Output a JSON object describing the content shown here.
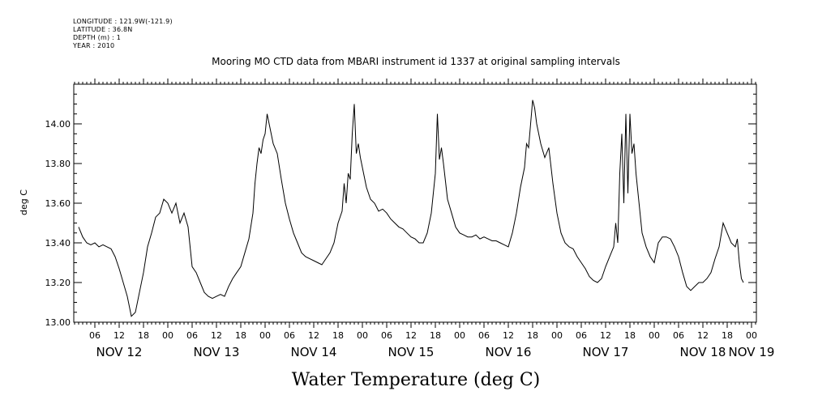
{
  "metadata": {
    "longitude": "LONGITUDE : 121.9W(-121.9)",
    "latitude": "LATITUDE : 36.8N",
    "depth": "DEPTH (m) : 1",
    "year": "YEAR : 2010"
  },
  "chart_data": {
    "type": "line",
    "title": "Mooring MO CTD data from MBARI instrument id 1337 at original sampling intervals",
    "xlabel": "Water Temperature (deg C)",
    "ylabel": "deg C",
    "ylim": [
      13.0,
      14.2
    ],
    "yticks": [
      13.0,
      13.2,
      13.4,
      13.6,
      13.8,
      14.0
    ],
    "ytick_labels": [
      "13.00",
      "13.20",
      "13.40",
      "13.60",
      "13.80",
      "14.00"
    ],
    "xlim_hours": [
      0,
      168
    ],
    "hour_ticks": [
      {
        "h": 4,
        "label": "06"
      },
      {
        "h": 10,
        "label": "12"
      },
      {
        "h": 16,
        "label": "18"
      },
      {
        "h": 22,
        "label": "00"
      },
      {
        "h": 28,
        "label": "06"
      },
      {
        "h": 34,
        "label": "12"
      },
      {
        "h": 40,
        "label": "18"
      },
      {
        "h": 46,
        "label": "00"
      },
      {
        "h": 52,
        "label": "06"
      },
      {
        "h": 58,
        "label": "12"
      },
      {
        "h": 64,
        "label": "18"
      },
      {
        "h": 70,
        "label": "00"
      },
      {
        "h": 76,
        "label": "06"
      },
      {
        "h": 82,
        "label": "12"
      },
      {
        "h": 88,
        "label": "18"
      },
      {
        "h": 94,
        "label": "00"
      },
      {
        "h": 100,
        "label": "06"
      },
      {
        "h": 106,
        "label": "12"
      },
      {
        "h": 112,
        "label": "18"
      },
      {
        "h": 118,
        "label": "00"
      },
      {
        "h": 124,
        "label": "06"
      },
      {
        "h": 130,
        "label": "12"
      },
      {
        "h": 136,
        "label": "18"
      },
      {
        "h": 142,
        "label": "00"
      },
      {
        "h": 148,
        "label": "06"
      },
      {
        "h": 154,
        "label": "12"
      },
      {
        "h": 160,
        "label": "18"
      },
      {
        "h": 166,
        "label": "00"
      }
    ],
    "date_labels": [
      {
        "h": 10,
        "label": "NOV 12"
      },
      {
        "h": 34,
        "label": "NOV 13"
      },
      {
        "h": 58,
        "label": "NOV 14"
      },
      {
        "h": 82,
        "label": "NOV 15"
      },
      {
        "h": 106,
        "label": "NOV 16"
      },
      {
        "h": 130,
        "label": "NOV 17"
      },
      {
        "h": 154,
        "label": "NOV 18"
      },
      {
        "h": 166,
        "label": "NOV 19"
      }
    ],
    "series": [
      {
        "color": "#000000",
        "points": [
          [
            0,
            13.48
          ],
          [
            1,
            13.43
          ],
          [
            2,
            13.4
          ],
          [
            3,
            13.39
          ],
          [
            4,
            13.4
          ],
          [
            5,
            13.38
          ],
          [
            6,
            13.39
          ],
          [
            7,
            13.38
          ],
          [
            8,
            13.37
          ],
          [
            9,
            13.33
          ],
          [
            10,
            13.27
          ],
          [
            11,
            13.2
          ],
          [
            12,
            13.13
          ],
          [
            13,
            13.03
          ],
          [
            14,
            13.05
          ],
          [
            15,
            13.15
          ],
          [
            16,
            13.25
          ],
          [
            17,
            13.38
          ],
          [
            18,
            13.45
          ],
          [
            19,
            13.53
          ],
          [
            20,
            13.55
          ],
          [
            21,
            13.62
          ],
          [
            22,
            13.6
          ],
          [
            23,
            13.55
          ],
          [
            24,
            13.6
          ],
          [
            25,
            13.5
          ],
          [
            26,
            13.55
          ],
          [
            27,
            13.48
          ],
          [
            28,
            13.28
          ],
          [
            29,
            13.25
          ],
          [
            30,
            13.2
          ],
          [
            31,
            13.15
          ],
          [
            32,
            13.13
          ],
          [
            33,
            13.12
          ],
          [
            34,
            13.13
          ],
          [
            35,
            13.14
          ],
          [
            36,
            13.13
          ],
          [
            37,
            13.18
          ],
          [
            38,
            13.22
          ],
          [
            39,
            13.25
          ],
          [
            40,
            13.28
          ],
          [
            41,
            13.35
          ],
          [
            42,
            13.42
          ],
          [
            43,
            13.55
          ],
          [
            43.5,
            13.7
          ],
          [
            44,
            13.8
          ],
          [
            44.5,
            13.88
          ],
          [
            45,
            13.85
          ],
          [
            45.5,
            13.92
          ],
          [
            46,
            13.95
          ],
          [
            46.5,
            14.05
          ],
          [
            47,
            14.0
          ],
          [
            48,
            13.9
          ],
          [
            49,
            13.85
          ],
          [
            50,
            13.72
          ],
          [
            51,
            13.6
          ],
          [
            52,
            13.52
          ],
          [
            53,
            13.45
          ],
          [
            54,
            13.4
          ],
          [
            55,
            13.35
          ],
          [
            56,
            13.33
          ],
          [
            57,
            13.32
          ],
          [
            58,
            13.31
          ],
          [
            59,
            13.3
          ],
          [
            60,
            13.29
          ],
          [
            61,
            13.32
          ],
          [
            62,
            13.35
          ],
          [
            63,
            13.4
          ],
          [
            64,
            13.5
          ],
          [
            65,
            13.56
          ],
          [
            65.5,
            13.7
          ],
          [
            66,
            13.6
          ],
          [
            66.5,
            13.75
          ],
          [
            67,
            13.72
          ],
          [
            67.5,
            13.95
          ],
          [
            68,
            14.1
          ],
          [
            68.5,
            13.85
          ],
          [
            69,
            13.9
          ],
          [
            69.5,
            13.83
          ],
          [
            70,
            13.78
          ],
          [
            71,
            13.68
          ],
          [
            72,
            13.62
          ],
          [
            73,
            13.6
          ],
          [
            74,
            13.56
          ],
          [
            75,
            13.57
          ],
          [
            76,
            13.55
          ],
          [
            77,
            13.52
          ],
          [
            78,
            13.5
          ],
          [
            79,
            13.48
          ],
          [
            80,
            13.47
          ],
          [
            81,
            13.45
          ],
          [
            82,
            13.43
          ],
          [
            83,
            13.42
          ],
          [
            84,
            13.4
          ],
          [
            85,
            13.4
          ],
          [
            86,
            13.45
          ],
          [
            87,
            13.55
          ],
          [
            88,
            13.75
          ],
          [
            88.5,
            14.05
          ],
          [
            89,
            13.82
          ],
          [
            89.5,
            13.88
          ],
          [
            90,
            13.8
          ],
          [
            91,
            13.62
          ],
          [
            92,
            13.55
          ],
          [
            93,
            13.48
          ],
          [
            94,
            13.45
          ],
          [
            95,
            13.44
          ],
          [
            96,
            13.43
          ],
          [
            97,
            13.43
          ],
          [
            98,
            13.44
          ],
          [
            99,
            13.42
          ],
          [
            100,
            13.43
          ],
          [
            101,
            13.42
          ],
          [
            102,
            13.41
          ],
          [
            103,
            13.41
          ],
          [
            104,
            13.4
          ],
          [
            105,
            13.39
          ],
          [
            106,
            13.38
          ],
          [
            107,
            13.45
          ],
          [
            108,
            13.55
          ],
          [
            109,
            13.68
          ],
          [
            110,
            13.78
          ],
          [
            110.5,
            13.9
          ],
          [
            111,
            13.88
          ],
          [
            111.5,
            14.0
          ],
          [
            112,
            14.12
          ],
          [
            112.5,
            14.08
          ],
          [
            113,
            14.0
          ],
          [
            114,
            13.9
          ],
          [
            115,
            13.83
          ],
          [
            116,
            13.88
          ],
          [
            117,
            13.7
          ],
          [
            118,
            13.55
          ],
          [
            119,
            13.45
          ],
          [
            120,
            13.4
          ],
          [
            121,
            13.38
          ],
          [
            122,
            13.37
          ],
          [
            123,
            13.33
          ],
          [
            124,
            13.3
          ],
          [
            125,
            13.27
          ],
          [
            126,
            13.23
          ],
          [
            127,
            13.21
          ],
          [
            128,
            13.2
          ],
          [
            129,
            13.22
          ],
          [
            130,
            13.28
          ],
          [
            131,
            13.33
          ],
          [
            132,
            13.38
          ],
          [
            132.5,
            13.5
          ],
          [
            133,
            13.4
          ],
          [
            133.5,
            13.75
          ],
          [
            134,
            13.95
          ],
          [
            134.5,
            13.6
          ],
          [
            135,
            14.05
          ],
          [
            135.5,
            13.65
          ],
          [
            136,
            14.05
          ],
          [
            136.5,
            13.85
          ],
          [
            137,
            13.9
          ],
          [
            137.5,
            13.75
          ],
          [
            138,
            13.65
          ],
          [
            139,
            13.45
          ],
          [
            140,
            13.38
          ],
          [
            141,
            13.33
          ],
          [
            142,
            13.3
          ],
          [
            143,
            13.4
          ],
          [
            144,
            13.43
          ],
          [
            145,
            13.43
          ],
          [
            146,
            13.42
          ],
          [
            147,
            13.38
          ],
          [
            148,
            13.33
          ],
          [
            149,
            13.25
          ],
          [
            150,
            13.18
          ],
          [
            151,
            13.16
          ],
          [
            152,
            13.18
          ],
          [
            153,
            13.2
          ],
          [
            154,
            13.2
          ],
          [
            155,
            13.22
          ],
          [
            156,
            13.25
          ],
          [
            157,
            13.32
          ],
          [
            158,
            13.38
          ],
          [
            159,
            13.5
          ],
          [
            160,
            13.45
          ],
          [
            161,
            13.4
          ],
          [
            162,
            13.38
          ],
          [
            162.5,
            13.42
          ],
          [
            163,
            13.3
          ],
          [
            163.5,
            13.22
          ],
          [
            164,
            13.2
          ]
        ]
      }
    ]
  }
}
